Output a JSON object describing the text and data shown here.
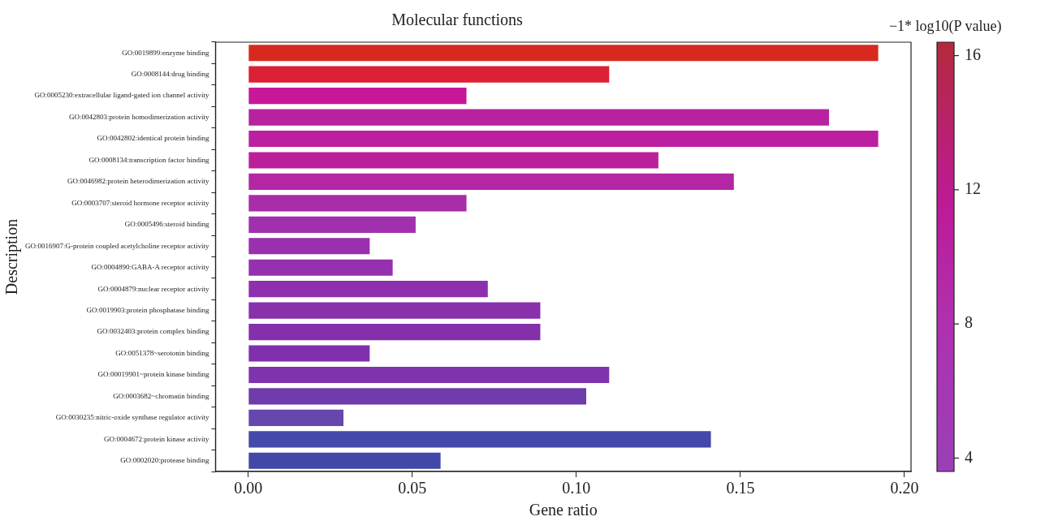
{
  "chart_data": {
    "type": "bar",
    "orientation": "horizontal",
    "title": "Molecular functions",
    "xlabel": "Gene ratio",
    "ylabel": "Description",
    "clabel": "−1* log10(P value)",
    "categories": [
      "GO:0019899:enzyme binding",
      "GO:0008144:drug binding",
      "GO:0005230:extracellular ligand-gated ion channel activity",
      "GO:0042803:protein homodimerization activity",
      "GO:0042802:identical protein binding",
      "GO:0008134:transcription factor binding",
      "GO:0046982:protein heterodimerization activity",
      "GO:0003707:steroid hormone receptor activity",
      "GO:0005496:steroid binding",
      "GO:0016907:G-protein coupled acetylcholine receptor activity",
      "GO:0004890:GABA-A receptor activity",
      "GO:0004879:nuclear receptor activity",
      "GO:0019903:protein phosphatase binding",
      "GO:0032403:protein complex binding",
      "GO:0051378~serotonin binding",
      "GO:00019901~protein kinase binding",
      "GO:0003682~chromatin binding",
      "GO:0030235:nitric-oxide synthase regulator activity",
      "GO:0004672:protein kinase activity",
      "GO:0002020:protease binding"
    ],
    "values": [
      0.192,
      0.11,
      0.0665,
      0.177,
      0.192,
      0.125,
      0.148,
      0.0665,
      0.051,
      0.037,
      0.044,
      0.073,
      0.089,
      0.089,
      0.037,
      0.11,
      0.103,
      0.029,
      0.141,
      0.0586
    ],
    "colors": [
      "#d8291f",
      "#dc2135",
      "#c8189a",
      "#b8229e",
      "#bc20a0",
      "#bb209a",
      "#b526a4",
      "#a92ca8",
      "#a030ae",
      "#9a30ae",
      "#9530ae",
      "#8e30ad",
      "#8930ab",
      "#8530ab",
      "#8030ac",
      "#7e34ac",
      "#6f3cab",
      "#6647ae",
      "#4448a8",
      "#4248a8"
    ],
    "xlim": [
      -0.01,
      0.202
    ],
    "xticks": [
      {
        "value": 0,
        "label": "0.00"
      },
      0.05,
      {
        "value": 0.1,
        "label": "0.10"
      },
      0.15,
      {
        "value": 0.2,
        "label": "0.20"
      }
    ],
    "clim": [
      3.6,
      16.4
    ],
    "cticks": [
      4,
      8,
      12,
      16
    ],
    "grid": false,
    "legend": false
  }
}
